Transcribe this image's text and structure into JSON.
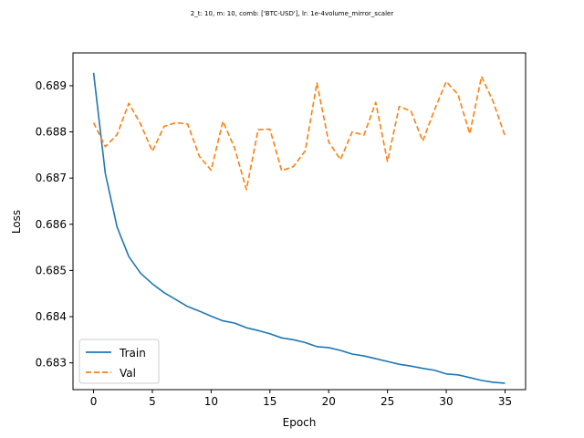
{
  "chart_data": {
    "type": "line",
    "title": "2_t: 10, m: 10, comb: ['BTC-USD'], lr: 1e-4volume_mirror_scaler",
    "xlabel": "Epoch",
    "ylabel": "Loss",
    "xlim": [
      -1.75,
      36.75
    ],
    "ylim": [
      0.68242,
      0.68971
    ],
    "xticks": [
      0,
      5,
      10,
      15,
      20,
      25,
      30,
      35
    ],
    "yticks": [
      0.683,
      0.684,
      0.685,
      0.686,
      0.687,
      0.688,
      0.689
    ],
    "ytick_labels": [
      "0.683",
      "0.684",
      "0.685",
      "0.686",
      "0.687",
      "0.688",
      "0.689"
    ],
    "legend_position": "lower-left",
    "grid": false,
    "x": [
      0,
      1,
      2,
      3,
      4,
      5,
      6,
      7,
      8,
      9,
      10,
      11,
      12,
      13,
      14,
      15,
      16,
      17,
      18,
      19,
      20,
      21,
      22,
      23,
      24,
      25,
      26,
      27,
      28,
      29,
      30,
      31,
      32,
      33,
      34,
      35
    ],
    "series": [
      {
        "name": "Train",
        "color": "#1f77b4",
        "dash": "solid",
        "values": [
          0.68928,
          0.6871,
          0.68594,
          0.6853,
          0.68494,
          0.68471,
          0.68452,
          0.68437,
          0.68422,
          0.68412,
          0.68401,
          0.68391,
          0.68386,
          0.68376,
          0.6837,
          0.68363,
          0.68354,
          0.6835,
          0.68344,
          0.68335,
          0.68333,
          0.68327,
          0.68319,
          0.68315,
          0.68309,
          0.68303,
          0.68297,
          0.68293,
          0.68288,
          0.68284,
          0.68276,
          0.68274,
          0.68268,
          0.68262,
          0.68258,
          0.68256
        ]
      },
      {
        "name": "Val",
        "color": "#ff7f0e",
        "dash": "dashed",
        "values": [
          0.6882,
          0.68768,
          0.68794,
          0.68862,
          0.68817,
          0.68758,
          0.68812,
          0.6882,
          0.68817,
          0.68747,
          0.68717,
          0.68823,
          0.68765,
          0.68675,
          0.68805,
          0.68806,
          0.68716,
          0.68725,
          0.68759,
          0.68906,
          0.68778,
          0.6874,
          0.688,
          0.68793,
          0.68864,
          0.68736,
          0.68855,
          0.68845,
          0.6878,
          0.68848,
          0.68909,
          0.68881,
          0.68796,
          0.6892,
          0.68865,
          0.68791
        ]
      }
    ]
  }
}
